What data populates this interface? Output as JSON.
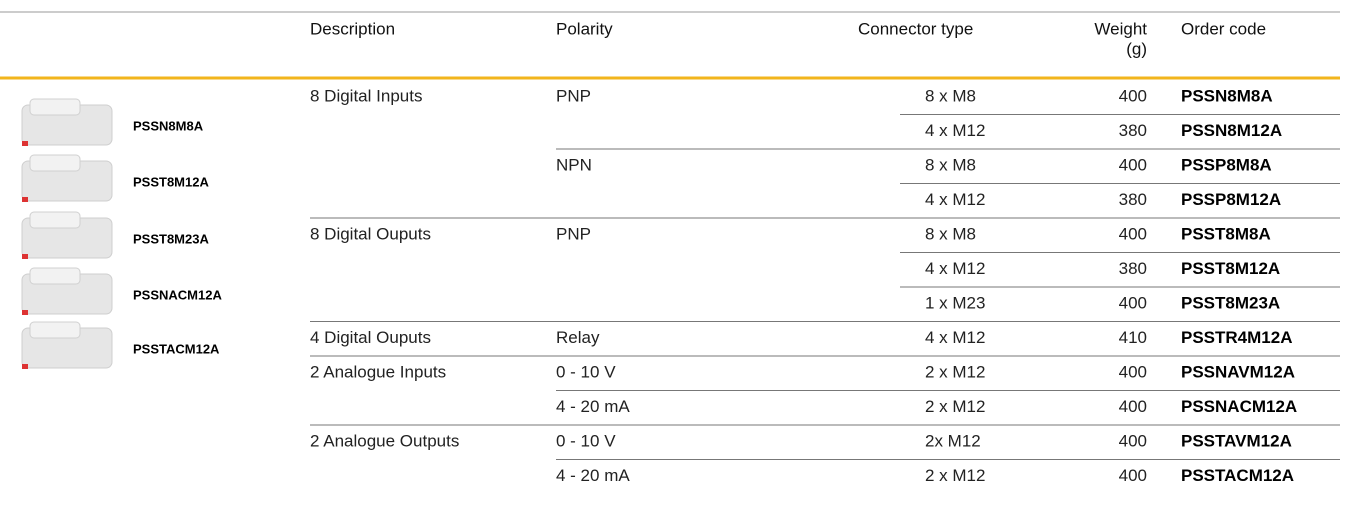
{
  "header": {
    "description": "Description",
    "polarity": "Polarity",
    "connector": "Connector type",
    "weight": [
      "Weight",
      "(g)"
    ],
    "order": "Order code"
  },
  "products": [
    "PSSN8M8A",
    "PSST8M12A",
    "PSST8M23A",
    "PSSNACM12A",
    "PSSTACM12A"
  ],
  "groups": [
    {
      "description": "8 Digital Inputs",
      "polarities": [
        {
          "polarity": "PNP",
          "items": [
            {
              "connector": "8 x M8",
              "weight": 400,
              "order": "PSSN8M8A"
            },
            {
              "connector": "4 x M12",
              "weight": 380,
              "order": "PSSN8M12A"
            }
          ]
        },
        {
          "polarity": "NPN",
          "items": [
            {
              "connector": "8 x M8",
              "weight": 400,
              "order": "PSSP8M8A"
            },
            {
              "connector": "4 x M12",
              "weight": 380,
              "order": "PSSP8M12A"
            }
          ]
        }
      ]
    },
    {
      "description": "8 Digital Ouputs",
      "polarities": [
        {
          "polarity": "PNP",
          "items": [
            {
              "connector": "8 x M8",
              "weight": 400,
              "order": "PSST8M8A"
            },
            {
              "connector": "4 x M12",
              "weight": 380,
              "order": "PSST8M12A"
            },
            {
              "connector": "1 x M23",
              "weight": 400,
              "order": "PSST8M23A"
            }
          ]
        }
      ]
    },
    {
      "description": "4 Digital Ouputs",
      "polarities": [
        {
          "polarity": "Relay",
          "items": [
            {
              "connector": "4 x M12",
              "weight": 410,
              "order": "PSSTR4M12A"
            }
          ]
        }
      ]
    },
    {
      "description": "2 Analogue Inputs",
      "polarities": [
        {
          "polarity": "0 - 10 V",
          "items": [
            {
              "connector": "2 x M12",
              "weight": 400,
              "order": "PSSNAVM12A"
            }
          ]
        },
        {
          "polarity": "4 - 20 mA",
          "items": [
            {
              "connector": "2 x M12",
              "weight": 400,
              "order": "PSSNACM12A"
            }
          ]
        }
      ]
    },
    {
      "description": "2 Analogue Outputs",
      "polarities": [
        {
          "polarity": "0 - 10 V",
          "items": [
            {
              "connector": "2x M12",
              "weight": 400,
              "order": "PSSTAVM12A"
            }
          ]
        },
        {
          "polarity": "4 - 20 mA",
          "items": [
            {
              "connector": "2 x M12",
              "weight": 400,
              "order": "PSSTACM12A"
            }
          ]
        }
      ]
    }
  ]
}
